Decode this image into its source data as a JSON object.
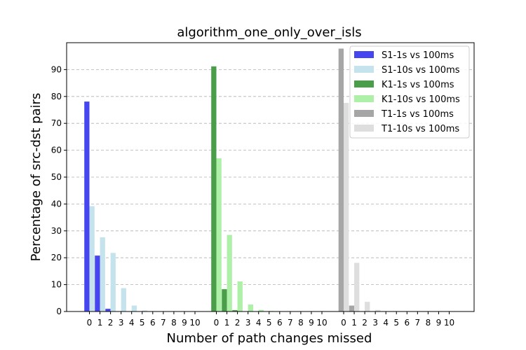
{
  "chart_data": {
    "type": "bar",
    "title": "algorithm_one_only_over_isls",
    "xlabel": "Number of path changes missed",
    "ylabel": "Percentage of src-dst pairs",
    "ylim": [
      0,
      100
    ],
    "yticks": [
      0,
      10,
      20,
      30,
      40,
      50,
      60,
      70,
      80,
      90
    ],
    "grid": "y, dashed",
    "legend_position": "top-right",
    "groups": [
      {
        "tick_labels": [
          "0",
          "1",
          "2",
          "3",
          "4",
          "5",
          "6",
          "7",
          "8",
          "9",
          "10"
        ],
        "series": [
          {
            "name": "S1-1s vs 100ms",
            "color": "#4646f0",
            "values": [
              78.1,
              20.8,
              1.0,
              0.1,
              0,
              0,
              0,
              0,
              0,
              0,
              0
            ]
          },
          {
            "name": "S1-10s vs 100ms",
            "color": "#c5e3ec",
            "values": [
              39.2,
              27.6,
              21.8,
              8.7,
              2.2,
              0.4,
              0.1,
              0,
              0,
              0,
              0
            ]
          }
        ]
      },
      {
        "tick_labels": [
          "0",
          "1",
          "2",
          "3",
          "4",
          "5",
          "6",
          "7",
          "8",
          "9",
          "10"
        ],
        "series": [
          {
            "name": "K1-1s vs 100ms",
            "color": "#4a9e4a",
            "values": [
              91.2,
              8.3,
              0.5,
              0,
              0,
              0,
              0,
              0,
              0,
              0,
              0
            ]
          },
          {
            "name": "K1-10s vs 100ms",
            "color": "#aef0a8",
            "values": [
              57.0,
              28.5,
              11.2,
              2.6,
              0.6,
              0.2,
              0,
              0,
              0,
              0,
              0
            ]
          }
        ]
      },
      {
        "tick_labels": [
          "0",
          "1",
          "2",
          "3",
          "4",
          "5",
          "6",
          "7",
          "8",
          "9",
          "10"
        ],
        "series": [
          {
            "name": "T1-1s vs 100ms",
            "color": "#a6a6a6",
            "values": [
              97.8,
              2.2,
              0,
              0,
              0,
              0,
              0,
              0,
              0,
              0,
              0
            ]
          },
          {
            "name": "T1-10s vs 100ms",
            "color": "#dedede",
            "values": [
              77.6,
              18.1,
              3.6,
              0.6,
              0.1,
              0,
              0,
              0,
              0,
              0,
              0
            ]
          }
        ]
      }
    ]
  }
}
